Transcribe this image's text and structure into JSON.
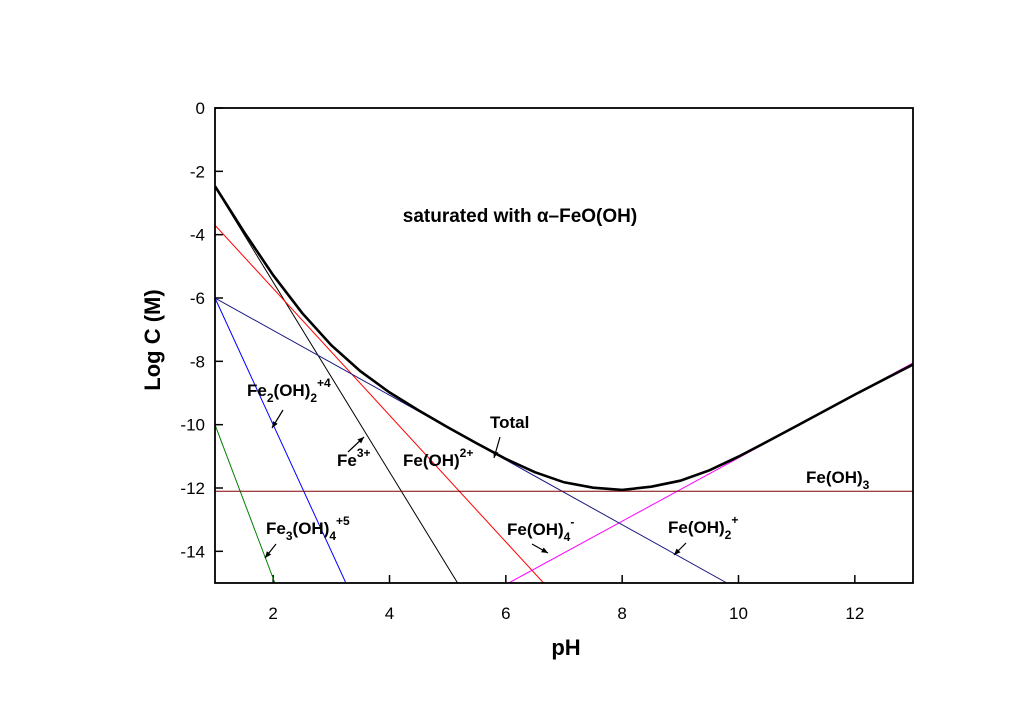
{
  "chart_data": {
    "type": "line",
    "title": "saturated with α–FeO(OH)",
    "x_label": "pH",
    "y_label": "Log C (M)",
    "xlim": [
      1,
      13
    ],
    "ylim": [
      -15,
      0
    ],
    "xticks": [
      2,
      4,
      6,
      8,
      10,
      12
    ],
    "yticks": [
      0,
      -2,
      -4,
      -6,
      -8,
      -10,
      -12,
      -14
    ],
    "series": [
      {
        "name": [
          {
            "text": "Fe"
          },
          {
            "text": "2",
            "style": "sub"
          },
          {
            "text": "(OH)"
          },
          {
            "text": "2",
            "style": "sub"
          },
          {
            "text": "+4",
            "style": "sup"
          }
        ],
        "color": "#0000ff",
        "x": [
          1,
          3.25
        ],
        "values": [
          -6,
          -15
        ]
      },
      {
        "name": [
          {
            "text": "Fe"
          },
          {
            "text": "3",
            "style": "sub"
          },
          {
            "text": "(OH)"
          },
          {
            "text": "4",
            "style": "sub"
          },
          {
            "text": "+5",
            "style": "sup"
          }
        ],
        "color": "#008000",
        "x": [
          1,
          2.03
        ],
        "values": [
          -10,
          -15
        ]
      },
      {
        "name": [
          {
            "text": "Fe"
          },
          {
            "text": "3+",
            "style": "sup"
          }
        ],
        "color": "#000000",
        "x": [
          1,
          5.17
        ],
        "values": [
          -2.5,
          -15
        ]
      },
      {
        "name": [
          {
            "text": "Fe(OH)"
          },
          {
            "text": "2+",
            "style": "sup"
          }
        ],
        "color": "#ff0000",
        "x": [
          1,
          6.65
        ],
        "values": [
          -3.7,
          -15
        ]
      },
      {
        "name": [
          {
            "text": "Fe(OH)"
          },
          {
            "text": "4",
            "style": "sub"
          },
          {
            "text": "-",
            "style": "sup"
          }
        ],
        "color": "#ff00ff",
        "x": [
          6.05,
          13
        ],
        "values": [
          -15,
          -8.05
        ]
      },
      {
        "name": [
          {
            "text": "Fe(OH)"
          },
          {
            "text": "2",
            "style": "sub"
          },
          {
            "text": "+",
            "style": "sup"
          }
        ],
        "color": "#1a1a80",
        "x": [
          1,
          9.8
        ],
        "values": [
          -6,
          -15
        ]
      },
      {
        "name": [
          {
            "text": "Fe(OH)"
          },
          {
            "text": "3",
            "style": "sub"
          }
        ],
        "color": "#800000",
        "x": [
          1,
          13
        ],
        "values": [
          -12.1,
          -12.1
        ]
      },
      {
        "name": [
          {
            "text": "Total"
          }
        ],
        "color": "#000000",
        "line_width": 2.6,
        "x": [
          1,
          1.5,
          2,
          2.5,
          3,
          3.5,
          4,
          4.5,
          5,
          5.5,
          6,
          6.5,
          7,
          7.5,
          8,
          8.5,
          9,
          9.5,
          10,
          10.5,
          11,
          12,
          13
        ],
        "values": [
          -2.47,
          -3.92,
          -5.28,
          -6.48,
          -7.49,
          -8.31,
          -8.98,
          -9.55,
          -10.08,
          -10.59,
          -11.08,
          -11.5,
          -11.82,
          -11.99,
          -12.06,
          -11.96,
          -11.77,
          -11.44,
          -11.01,
          -10.53,
          -10.04,
          -9.05,
          -8.1
        ]
      }
    ]
  }
}
